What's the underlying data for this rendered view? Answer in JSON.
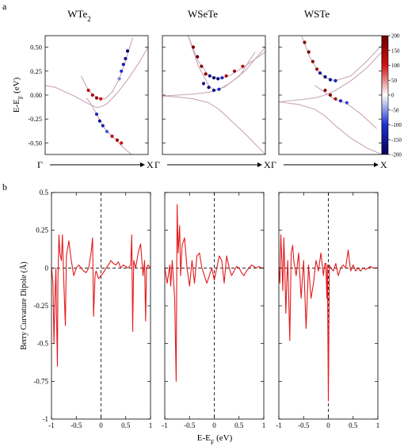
{
  "figure": {
    "panel_a_label": "a",
    "panel_b_label": "b"
  },
  "chart_data": [
    {
      "type": "scatter",
      "panel": "a",
      "description_free": true,
      "ylabel": "E-E",
      "ylabel_sub": "F",
      "ylabel_unit": " (eV)",
      "ylim": [
        -0.62,
        0.62
      ],
      "yticks": [
        0.5,
        0.25,
        0.0,
        -0.25,
        -0.5
      ],
      "ytick_labels": [
        "0.50",
        "0.25",
        "0.00",
        "-0.25",
        "-0.50"
      ],
      "xlabel_start": "Γ",
      "xlabel_end": "X",
      "colorbar": {
        "range": [
          -200,
          200
        ],
        "ticks": [
          200,
          150,
          100,
          50,
          0,
          -50,
          -100,
          -150,
          -200
        ],
        "colors": [
          "#08005a",
          "#1a2fd0",
          "#ffffff",
          "#d01010",
          "#6a0000"
        ]
      },
      "subplots": [
        {
          "title": "WTe",
          "title_sub": "2",
          "bands": [
            {
              "x": [
                0.0,
                0.1,
                0.2,
                0.3,
                0.4,
                0.5,
                0.55,
                0.6,
                0.7,
                0.8,
                0.9,
                1.0
              ],
              "y": [
                0.1,
                0.08,
                0.03,
                -0.02,
                -0.08,
                -0.13,
                -0.12,
                -0.09,
                0.02,
                0.16,
                0.32,
                0.5
              ]
            },
            {
              "x": [
                0.35,
                0.42,
                0.5,
                0.58,
                0.65,
                0.72,
                0.78,
                0.85
              ],
              "y": [
                0.2,
                0.05,
                -0.03,
                -0.04,
                0.03,
                0.17,
                0.35,
                0.6
              ]
            },
            {
              "x": [
                0.4,
                0.45,
                0.5,
                0.55,
                0.6,
                0.68,
                0.76,
                0.85
              ],
              "y": [
                -0.03,
                -0.1,
                -0.2,
                -0.3,
                -0.38,
                -0.46,
                -0.55,
                -0.63
              ]
            }
          ],
          "colored_points": [
            {
              "x": [
                0.42,
                0.46,
                0.5,
                0.54
              ],
              "y": [
                0.05,
                0.0,
                -0.03,
                -0.04
              ],
              "c": [
                120,
                140,
                160,
                100
              ]
            },
            {
              "x": [
                0.72,
                0.74,
                0.76,
                0.78,
                0.8
              ],
              "y": [
                0.17,
                0.25,
                0.32,
                0.38,
                0.46
              ],
              "c": [
                -60,
                -100,
                -140,
                -160,
                -180
              ]
            },
            {
              "x": [
                0.5,
                0.53,
                0.56,
                0.6
              ],
              "y": [
                -0.2,
                -0.27,
                -0.32,
                -0.38
              ],
              "c": [
                -120,
                -150,
                -130,
                -80
              ]
            },
            {
              "x": [
                0.65,
                0.7,
                0.74
              ],
              "y": [
                -0.43,
                -0.47,
                -0.5
              ],
              "c": [
                120,
                150,
                100
              ]
            }
          ]
        },
        {
          "title": "WSeTe",
          "title_sub": "",
          "bands": [
            {
              "x": [
                0.0,
                0.15,
                0.3,
                0.45,
                0.55,
                0.65,
                0.8,
                1.0
              ],
              "y": [
                -0.01,
                -0.02,
                -0.04,
                -0.08,
                -0.15,
                -0.25,
                -0.4,
                -0.62
              ]
            },
            {
              "x": [
                0.0,
                0.15,
                0.3,
                0.45,
                0.55,
                0.65,
                0.8,
                1.0
              ],
              "y": [
                -0.01,
                0.0,
                0.01,
                0.03,
                0.06,
                0.12,
                0.25,
                0.5
              ]
            },
            {
              "x": [
                0.25,
                0.35,
                0.45,
                0.55,
                0.65,
                0.8,
                1.0
              ],
              "y": [
                0.62,
                0.35,
                0.2,
                0.17,
                0.2,
                0.3,
                0.45
              ]
            },
            {
              "x": [
                0.25,
                0.35,
                0.45,
                0.5,
                0.6,
                0.75,
                0.9
              ],
              "y": [
                0.62,
                0.3,
                0.1,
                0.05,
                0.08,
                0.2,
                0.45
              ]
            }
          ],
          "colored_points": [
            {
              "x": [
                0.3,
                0.34,
                0.38,
                0.42
              ],
              "y": [
                0.5,
                0.4,
                0.3,
                0.22
              ],
              "c": [
                180,
                190,
                180,
                160
              ]
            },
            {
              "x": [
                0.46,
                0.5,
                0.54,
                0.58
              ],
              "y": [
                0.2,
                0.18,
                0.17,
                0.18
              ],
              "c": [
                -160,
                -190,
                -170,
                -120
              ]
            },
            {
              "x": [
                0.62,
                0.7,
                0.78
              ],
              "y": [
                0.2,
                0.25,
                0.3
              ],
              "c": [
                140,
                160,
                120
              ]
            },
            {
              "x": [
                0.4,
                0.45,
                0.5,
                0.55
              ],
              "y": [
                0.12,
                0.08,
                0.05,
                0.06
              ],
              "c": [
                -160,
                -180,
                -150,
                -110
              ]
            }
          ]
        },
        {
          "title": "WSTe",
          "title_sub": "",
          "bands": [
            {
              "x": [
                0.0,
                0.2,
                0.35,
                0.45,
                0.55,
                0.7,
                0.85,
                1.0
              ],
              "y": [
                -0.07,
                -0.05,
                -0.03,
                0.0,
                0.05,
                0.15,
                0.28,
                0.45
              ]
            },
            {
              "x": [
                0.0,
                0.2,
                0.35,
                0.45,
                0.55,
                0.7,
                0.85,
                1.0
              ],
              "y": [
                -0.07,
                -0.1,
                -0.15,
                -0.22,
                -0.32,
                -0.45,
                -0.55,
                -0.62
              ]
            },
            {
              "x": [
                0.22,
                0.3,
                0.38,
                0.45,
                0.55,
                0.7,
                0.85,
                1.0
              ],
              "y": [
                0.62,
                0.4,
                0.25,
                0.18,
                0.15,
                0.2,
                0.35,
                0.52
              ]
            },
            {
              "x": [
                0.35,
                0.42,
                0.48,
                0.55,
                0.65,
                0.8,
                0.95
              ],
              "y": [
                0.1,
                0.05,
                0.0,
                -0.05,
                -0.08,
                -0.2,
                -0.35
              ]
            }
          ],
          "colored_points": [
            {
              "x": [
                0.25,
                0.29,
                0.33,
                0.37
              ],
              "y": [
                0.55,
                0.45,
                0.35,
                0.27
              ],
              "c": [
                180,
                190,
                170,
                150
              ]
            },
            {
              "x": [
                0.4,
                0.45,
                0.5,
                0.55
              ],
              "y": [
                0.23,
                0.19,
                0.16,
                0.15
              ],
              "c": [
                -150,
                -180,
                -160,
                -120
              ]
            },
            {
              "x": [
                0.45,
                0.5,
                0.55
              ],
              "y": [
                0.05,
                0.0,
                -0.04
              ],
              "c": [
                160,
                180,
                140
              ]
            },
            {
              "x": [
                0.6,
                0.66
              ],
              "y": [
                -0.06,
                -0.08
              ],
              "c": [
                -120,
                -90
              ]
            }
          ]
        }
      ]
    },
    {
      "type": "line",
      "panel": "b",
      "ylabel": "Berry Curvature Dipole (Å)",
      "xlabel": "E-E",
      "xlabel_sub": "F",
      "xlabel_unit": " (eV)",
      "xlim": [
        -1,
        1
      ],
      "ylim": [
        -1,
        0.5
      ],
      "xticks": [
        -1,
        -0.5,
        0,
        0.5,
        1
      ],
      "xtick_labels": [
        "-1",
        "-0.5",
        "0",
        "0.5",
        "1"
      ],
      "yticks": [
        0.5,
        0.25,
        0,
        -0.25,
        -0.5,
        -0.75,
        -1
      ],
      "ytick_labels": [
        "0.5",
        "0.25",
        "0",
        "-0.25",
        "-0.5",
        "-0.75",
        "-1"
      ],
      "series_color": "#e31a1c",
      "subplots": [
        {
          "x": [
            -1.0,
            -0.97,
            -0.95,
            -0.93,
            -0.91,
            -0.9,
            -0.88,
            -0.87,
            -0.85,
            -0.83,
            -0.8,
            -0.78,
            -0.75,
            -0.72,
            -0.7,
            -0.65,
            -0.6,
            -0.55,
            -0.5,
            -0.45,
            -0.4,
            -0.35,
            -0.3,
            -0.25,
            -0.2,
            -0.17,
            -0.15,
            -0.12,
            -0.1,
            -0.05,
            0.0,
            0.05,
            0.1,
            0.15,
            0.2,
            0.25,
            0.3,
            0.35,
            0.4,
            0.45,
            0.5,
            0.55,
            0.6,
            0.62,
            0.64,
            0.66,
            0.7,
            0.75,
            0.8,
            0.85,
            0.88,
            0.9,
            0.92,
            0.95,
            1.0
          ],
          "y": [
            0.0,
            -0.1,
            -0.5,
            -0.2,
            0.0,
            -0.3,
            -0.65,
            -0.1,
            0.22,
            0.1,
            0.05,
            0.22,
            -0.1,
            -0.38,
            0.08,
            0.18,
            0.05,
            -0.05,
            0.0,
            0.02,
            0.0,
            -0.02,
            -0.03,
            0.0,
            0.1,
            0.2,
            -0.32,
            -0.05,
            -0.02,
            -0.07,
            -0.05,
            -0.03,
            0.0,
            0.02,
            0.05,
            0.03,
            0.02,
            0.04,
            0.0,
            0.02,
            0.01,
            0.0,
            0.02,
            0.22,
            -0.42,
            0.05,
            0.0,
            0.1,
            0.16,
            -0.05,
            0.05,
            -0.35,
            0.0,
            0.02,
            0.0
          ]
        },
        {
          "x": [
            -1.0,
            -0.95,
            -0.9,
            -0.88,
            -0.85,
            -0.8,
            -0.77,
            -0.75,
            -0.73,
            -0.7,
            -0.68,
            -0.65,
            -0.6,
            -0.55,
            -0.5,
            -0.45,
            -0.4,
            -0.35,
            -0.3,
            -0.25,
            -0.2,
            -0.15,
            -0.1,
            -0.05,
            0.0,
            0.05,
            0.1,
            0.15,
            0.2,
            0.25,
            0.3,
            0.35,
            0.4,
            0.45,
            0.5,
            0.55,
            0.6,
            0.65,
            0.7,
            0.75,
            0.8,
            0.85,
            0.9,
            0.95,
            1.0
          ],
          "y": [
            0.0,
            -0.1,
            0.02,
            -0.12,
            0.05,
            -0.2,
            -0.75,
            0.42,
            0.1,
            0.28,
            -0.05,
            0.15,
            0.2,
            0.0,
            -0.12,
            0.05,
            -0.1,
            0.08,
            0.1,
            0.0,
            -0.05,
            -0.1,
            -0.05,
            0.0,
            -0.08,
            0.0,
            0.08,
            0.05,
            -0.1,
            0.08,
            0.0,
            -0.05,
            -0.02,
            0.01,
            0.0,
            -0.03,
            -0.05,
            -0.02,
            0.0,
            0.02,
            0.01,
            0.0,
            0.01,
            0.0,
            0.0
          ]
        },
        {
          "x": [
            -1.0,
            -0.98,
            -0.96,
            -0.94,
            -0.92,
            -0.9,
            -0.88,
            -0.86,
            -0.84,
            -0.82,
            -0.8,
            -0.78,
            -0.75,
            -0.72,
            -0.7,
            -0.65,
            -0.6,
            -0.55,
            -0.5,
            -0.45,
            -0.4,
            -0.35,
            -0.3,
            -0.25,
            -0.2,
            -0.15,
            -0.1,
            -0.07,
            -0.05,
            -0.03,
            -0.02,
            0.0,
            0.02,
            0.05,
            0.1,
            0.15,
            0.2,
            0.25,
            0.3,
            0.35,
            0.4,
            0.45,
            0.5,
            0.55,
            0.6,
            0.65,
            0.7,
            0.75,
            0.8,
            0.85,
            0.9,
            0.95,
            1.0
          ],
          "y": [
            0.0,
            -0.1,
            0.22,
            0.05,
            -0.15,
            0.2,
            0.0,
            -0.3,
            -0.1,
            0.05,
            -0.2,
            -0.48,
            0.1,
            0.15,
            0.05,
            -0.05,
            0.1,
            -0.2,
            0.05,
            -0.4,
            0.02,
            -0.2,
            -0.1,
            0.05,
            -0.02,
            0.1,
            -0.05,
            0.03,
            0.03,
            -0.2,
            0.02,
            -0.88,
            0.02,
            0.0,
            -0.02,
            0.03,
            -0.05,
            0.0,
            0.02,
            0.0,
            0.12,
            -0.02,
            0.02,
            -0.02,
            0.0,
            -0.02,
            0.0,
            -0.01,
            0.0,
            0.01,
            0.0,
            0.0,
            0.0
          ]
        }
      ]
    }
  ]
}
